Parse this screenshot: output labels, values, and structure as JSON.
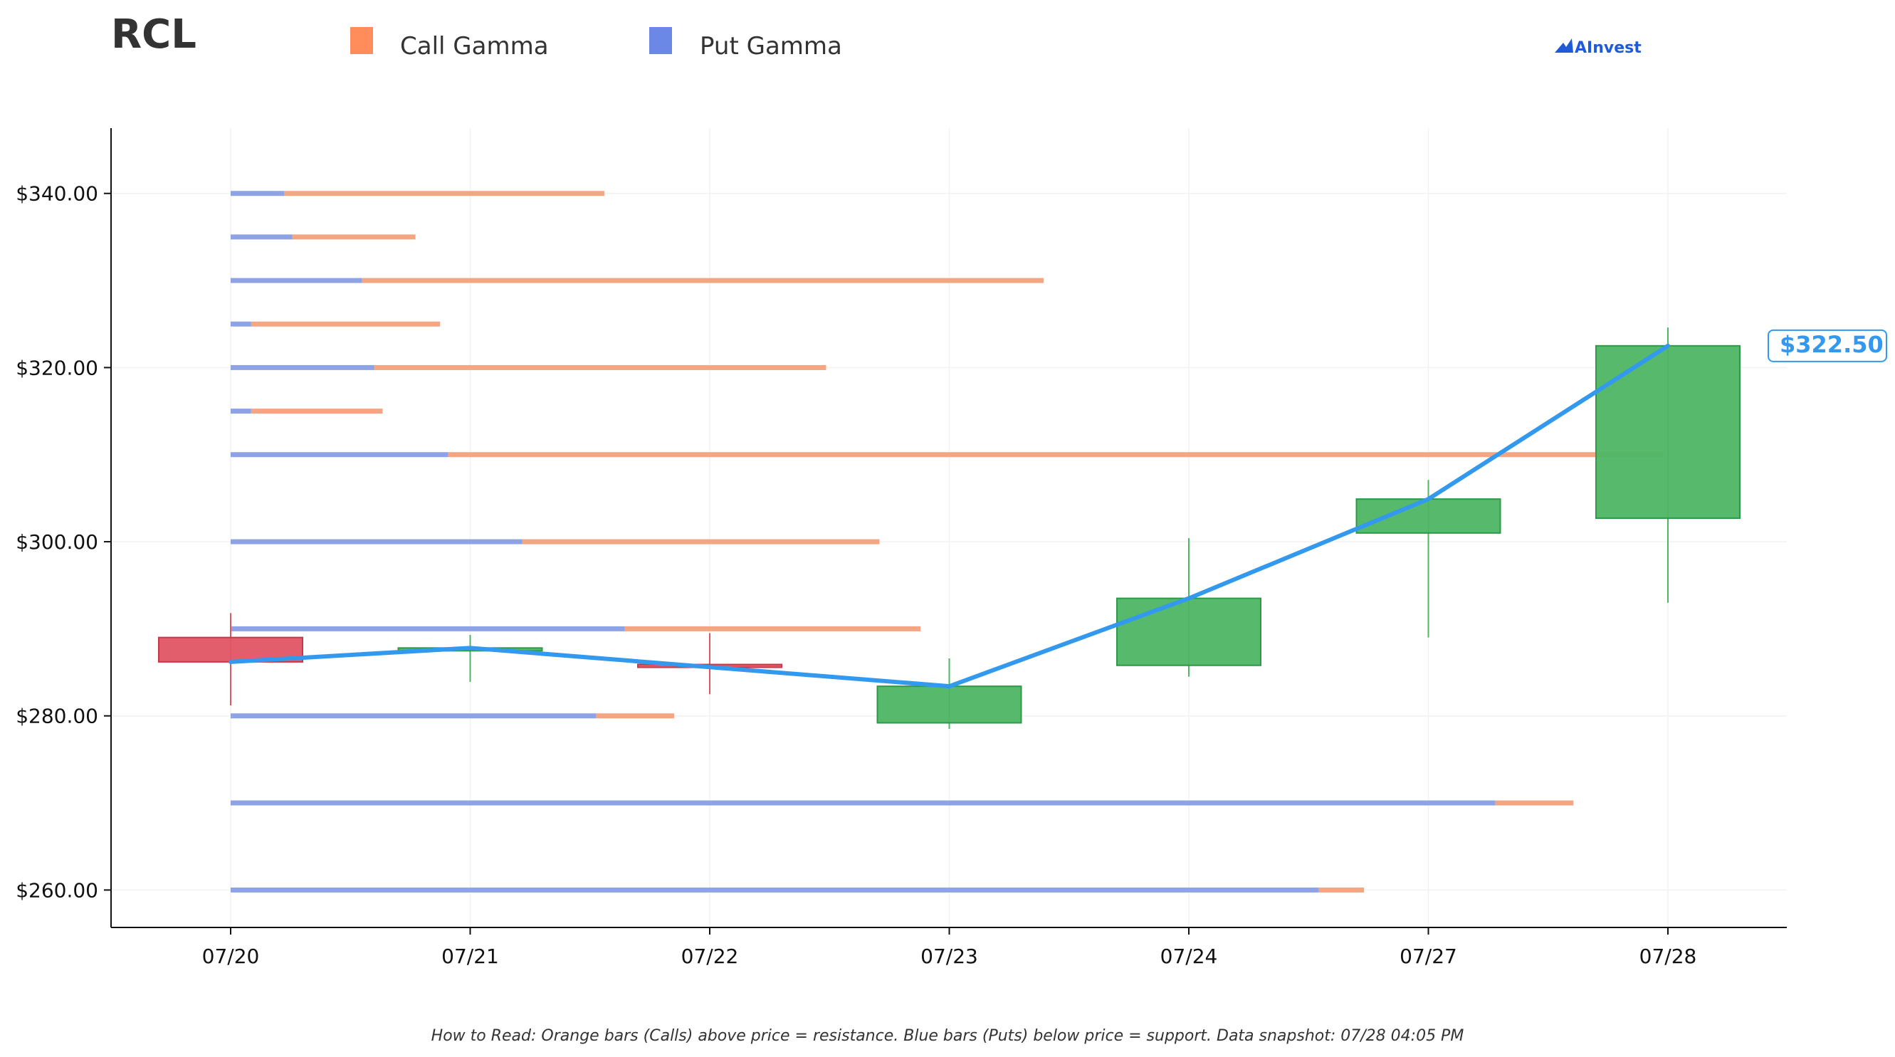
{
  "ticker": "RCL",
  "brand": "AInvest",
  "footnote": "How to Read: Orange bars (Calls) above price = resistance. Blue bars (Puts) below price = support. Data snapshot: 07/28 04:05 PM",
  "last_price_label": "$322.50",
  "colors": {
    "call": "#f4a582",
    "put": "#8ea2e6",
    "legend_call": "#ff8c5a",
    "legend_put": "#6b88e6",
    "up": "#4db564",
    "down": "#e05564",
    "price_line": "#3399ee",
    "grid": "#f2f2f2"
  },
  "chart_data": {
    "type": "candlestick",
    "legend": [
      "Call Gamma",
      "Put Gamma"
    ],
    "legend_position": "top",
    "grid": true,
    "categories": [
      "07/20",
      "07/21",
      "07/22",
      "07/23",
      "07/24",
      "07/27",
      "07/28"
    ],
    "y_ticks": [
      260,
      280,
      300,
      320,
      340
    ],
    "y_tick_labels": [
      "$260.00",
      "$280.00",
      "$300.00",
      "$320.00",
      "$340.00"
    ],
    "ylim": [
      255.7,
      347.5
    ],
    "candles": [
      {
        "date": "07/20",
        "open": 289.0,
        "high": 291.8,
        "low": 281.2,
        "close": 286.2
      },
      {
        "date": "07/21",
        "open": 287.5,
        "high": 289.3,
        "low": 283.9,
        "close": 287.8
      },
      {
        "date": "07/22",
        "open": 285.9,
        "high": 289.5,
        "low": 282.5,
        "close": 285.6
      },
      {
        "date": "07/23",
        "open": 279.2,
        "high": 286.6,
        "low": 278.5,
        "close": 283.4
      },
      {
        "date": "07/24",
        "open": 285.8,
        "high": 300.4,
        "low": 284.5,
        "close": 293.5
      },
      {
        "date": "07/27",
        "open": 301.0,
        "high": 307.1,
        "low": 289.0,
        "close": 304.9
      },
      {
        "date": "07/28",
        "open": 302.7,
        "high": 324.6,
        "low": 293.0,
        "close": 322.5
      }
    ],
    "gamma_scale_max": 3.5,
    "gamma_levels": [
      {
        "strike": 340,
        "put": 0.13,
        "call": 0.78
      },
      {
        "strike": 335,
        "put": 0.15,
        "call": 0.3
      },
      {
        "strike": 330,
        "put": 0.32,
        "call": 1.66
      },
      {
        "strike": 325,
        "put": 0.05,
        "call": 0.46
      },
      {
        "strike": 320,
        "put": 0.35,
        "call": 1.1
      },
      {
        "strike": 315,
        "put": 0.05,
        "call": 0.32
      },
      {
        "strike": 310,
        "put": 0.53,
        "call": 2.96
      },
      {
        "strike": 300,
        "put": 0.71,
        "call": 0.87
      },
      {
        "strike": 290,
        "put": 0.96,
        "call": 0.72
      },
      {
        "strike": 280,
        "put": 0.89,
        "call": 0.19
      },
      {
        "strike": 270,
        "put": 3.08,
        "call": 0.19
      },
      {
        "strike": 260,
        "put": 2.65,
        "call": 0.11
      }
    ]
  }
}
